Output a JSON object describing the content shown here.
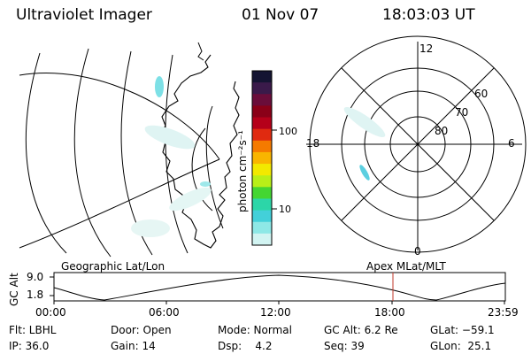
{
  "header": {
    "instrument": "Ultraviolet Imager",
    "date": "01 Nov 07",
    "time": "18:03:03 UT"
  },
  "colorbar": {
    "unit_label": "photon cm⁻²s⁻¹",
    "ticks": [
      "100",
      "10"
    ],
    "colors": [
      "#141432",
      "#3a1a4a",
      "#6a0d3a",
      "#8a0018",
      "#b5001a",
      "#e02a10",
      "#f57a00",
      "#f9b500",
      "#f2e900",
      "#b8ef18",
      "#44d632",
      "#2cd6a8",
      "#43d0d9",
      "#8ee8e6",
      "#d2f4f2"
    ]
  },
  "polar_plot": {
    "mlt_labels": [
      "12",
      "18",
      "6",
      "0"
    ],
    "lat_labels": [
      "60",
      "70",
      "80"
    ]
  },
  "timeline": {
    "y_axis_label": "GC Alt",
    "y_ticks": [
      "9.0",
      "1.8"
    ],
    "left_label": "Geographic Lat/Lon",
    "right_label": "Apex  MLat/MLT",
    "x_ticks": [
      "00:00",
      "06:00",
      "12:00",
      "18:00",
      "23:59"
    ]
  },
  "info": {
    "filter": "Flt: LBHL",
    "door": "Door: Open",
    "mode": "Mode: Normal",
    "gc_alt": "GC Alt: 6.2 Re",
    "glat": "GLat: −59.1",
    "ip": "IP: 36.0",
    "gain": "Gain: 14",
    "dsp": "Dsp:    4.2",
    "seq": "Seq: 39",
    "glon": "GLon:  25.1"
  }
}
